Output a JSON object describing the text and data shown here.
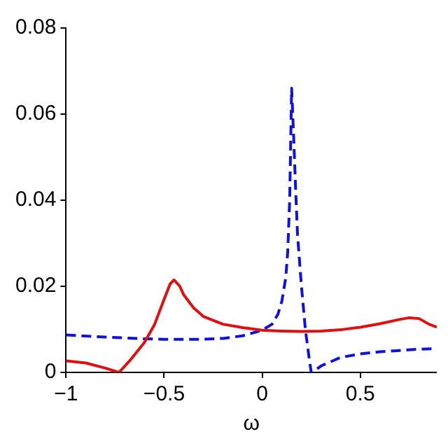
{
  "chart_data": {
    "type": "line",
    "xlabel": "ω",
    "xlim": [
      -1,
      0.89
    ],
    "xticks": [
      -1,
      -0.5,
      0,
      0.5
    ],
    "ylim": [
      0,
      0.08
    ],
    "yticks": [
      0,
      0.02,
      0.04,
      0.06,
      0.08
    ],
    "grid": false,
    "legend": false,
    "marker": "none",
    "series": [
      {
        "color": "#e01010",
        "line_style": "solid",
        "x": [
          -1,
          -0.9,
          -0.8,
          -0.73,
          -0.67,
          -0.6,
          -0.55,
          -0.5,
          -0.47,
          -0.45,
          -0.42,
          -0.4,
          -0.35,
          -0.3,
          -0.2,
          -0.1,
          0,
          0.1,
          0.2,
          0.3,
          0.4,
          0.5,
          0.6,
          0.7,
          0.75,
          0.8,
          0.85,
          0.89
        ],
        "values": [
          0.0027,
          0.0022,
          0.001,
          0,
          0.003,
          0.007,
          0.011,
          0.017,
          0.0205,
          0.0215,
          0.02,
          0.018,
          0.015,
          0.013,
          0.0112,
          0.0104,
          0.0098,
          0.0096,
          0.0095,
          0.0096,
          0.0099,
          0.0105,
          0.0113,
          0.0123,
          0.0127,
          0.0125,
          0.0112,
          0.0105
        ]
      },
      {
        "color": "#1010e0",
        "line_style": "dashed",
        "x": [
          -1,
          -0.8,
          -0.6,
          -0.5,
          -0.3,
          -0.2,
          -0.1,
          0,
          0.05,
          0.08,
          0.1,
          0.12,
          0.13,
          0.14,
          0.15,
          0.16,
          0.17,
          0.18,
          0.2,
          0.22,
          0.24,
          0.25,
          0.27,
          0.3,
          0.4,
          0.5,
          0.6,
          0.7,
          0.8,
          0.89
        ],
        "values": [
          0.0087,
          0.0082,
          0.0078,
          0.0077,
          0.0077,
          0.0079,
          0.0085,
          0.0098,
          0.0112,
          0.0135,
          0.0165,
          0.022,
          0.028,
          0.04,
          0.066,
          0.055,
          0.043,
          0.032,
          0.02,
          0.01,
          0.003,
          0,
          0.0005,
          0.0015,
          0.0035,
          0.0043,
          0.0048,
          0.0051,
          0.0054,
          0.0055
        ]
      }
    ]
  }
}
